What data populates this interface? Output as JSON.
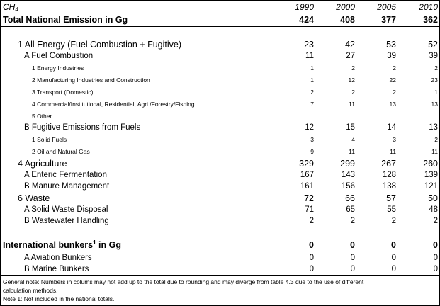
{
  "header": {
    "label": "CH",
    "label_sub": "4",
    "years": [
      "1990",
      "2000",
      "2005",
      "2010"
    ]
  },
  "total": {
    "label": "Total  National Emission in Gg",
    "values": [
      "424",
      "408",
      "377",
      "362"
    ]
  },
  "rows": [
    {
      "level": 1,
      "label": "1 All Energy (Fuel Combustion + Fugitive)",
      "values": [
        "23",
        "42",
        "53",
        "52"
      ]
    },
    {
      "level": 2,
      "label": "A Fuel Combustion",
      "values": [
        "11",
        "27",
        "39",
        "39"
      ]
    },
    {
      "level": 3,
      "label": "1 Energy Industries",
      "values": [
        "1",
        "2",
        "2",
        "2"
      ]
    },
    {
      "level": 3,
      "label": "2 Manufacturing Industries and Construction",
      "values": [
        "1",
        "12",
        "22",
        "23"
      ]
    },
    {
      "level": 3,
      "label": "3 Transport (Domestic)",
      "values": [
        "2",
        "2",
        "2",
        "1"
      ]
    },
    {
      "level": 3,
      "label": "4 Commercial/Institutional, Residential, Agri./Forestry/Fishing",
      "values": [
        "7",
        "11",
        "13",
        "13"
      ]
    },
    {
      "level": 3,
      "label": "5 Other",
      "values": [
        "",
        "",
        "",
        ""
      ]
    },
    {
      "level": 2,
      "label": "B Fugitive Emissions from Fuels",
      "values": [
        "12",
        "15",
        "14",
        "13"
      ]
    },
    {
      "level": 3,
      "label": "1 Solid Fuels",
      "values": [
        "3",
        "4",
        "3",
        "2"
      ]
    },
    {
      "level": 3,
      "label": "2 Oil and Natural Gas",
      "values": [
        "9",
        "11",
        "11",
        "11"
      ]
    },
    {
      "level": 1,
      "label": "4 Agriculture",
      "values": [
        "329",
        "299",
        "267",
        "260"
      ]
    },
    {
      "level": 2,
      "label": "A Enteric  Fermentation",
      "values": [
        "167",
        "143",
        "128",
        "139"
      ]
    },
    {
      "level": 2,
      "label": "B Manure Management",
      "values": [
        "161",
        "156",
        "138",
        "121"
      ]
    },
    {
      "level": 1,
      "label": "6 Waste",
      "values": [
        "72",
        "66",
        "57",
        "50"
      ]
    },
    {
      "level": 2,
      "label": "A Solid Waste Disposal",
      "values": [
        "71",
        "65",
        "55",
        "48"
      ]
    },
    {
      "level": 2,
      "label": "B Wastewater Handling",
      "values": [
        "2",
        "2",
        "2",
        "2"
      ]
    }
  ],
  "bunkers": {
    "label_pre": "International bunkers",
    "label_sup": "1",
    "label_post": " in Gg",
    "values": [
      "0",
      "0",
      "0",
      "0"
    ],
    "rows": [
      {
        "label": "A Aviation Bunkers",
        "values": [
          "0",
          "0",
          "0",
          "0"
        ]
      },
      {
        "label": "B Marine Bunkers",
        "values": [
          "0",
          "0",
          "0",
          "0"
        ]
      }
    ]
  },
  "notes": {
    "general_line1": "General note: Numbers in colums may not add up to the total due to rounding and may diverge from table 4.3 due to the use of different",
    "general_line2": " calculation methods.",
    "note1": "Note 1: Not included in the national totals."
  }
}
